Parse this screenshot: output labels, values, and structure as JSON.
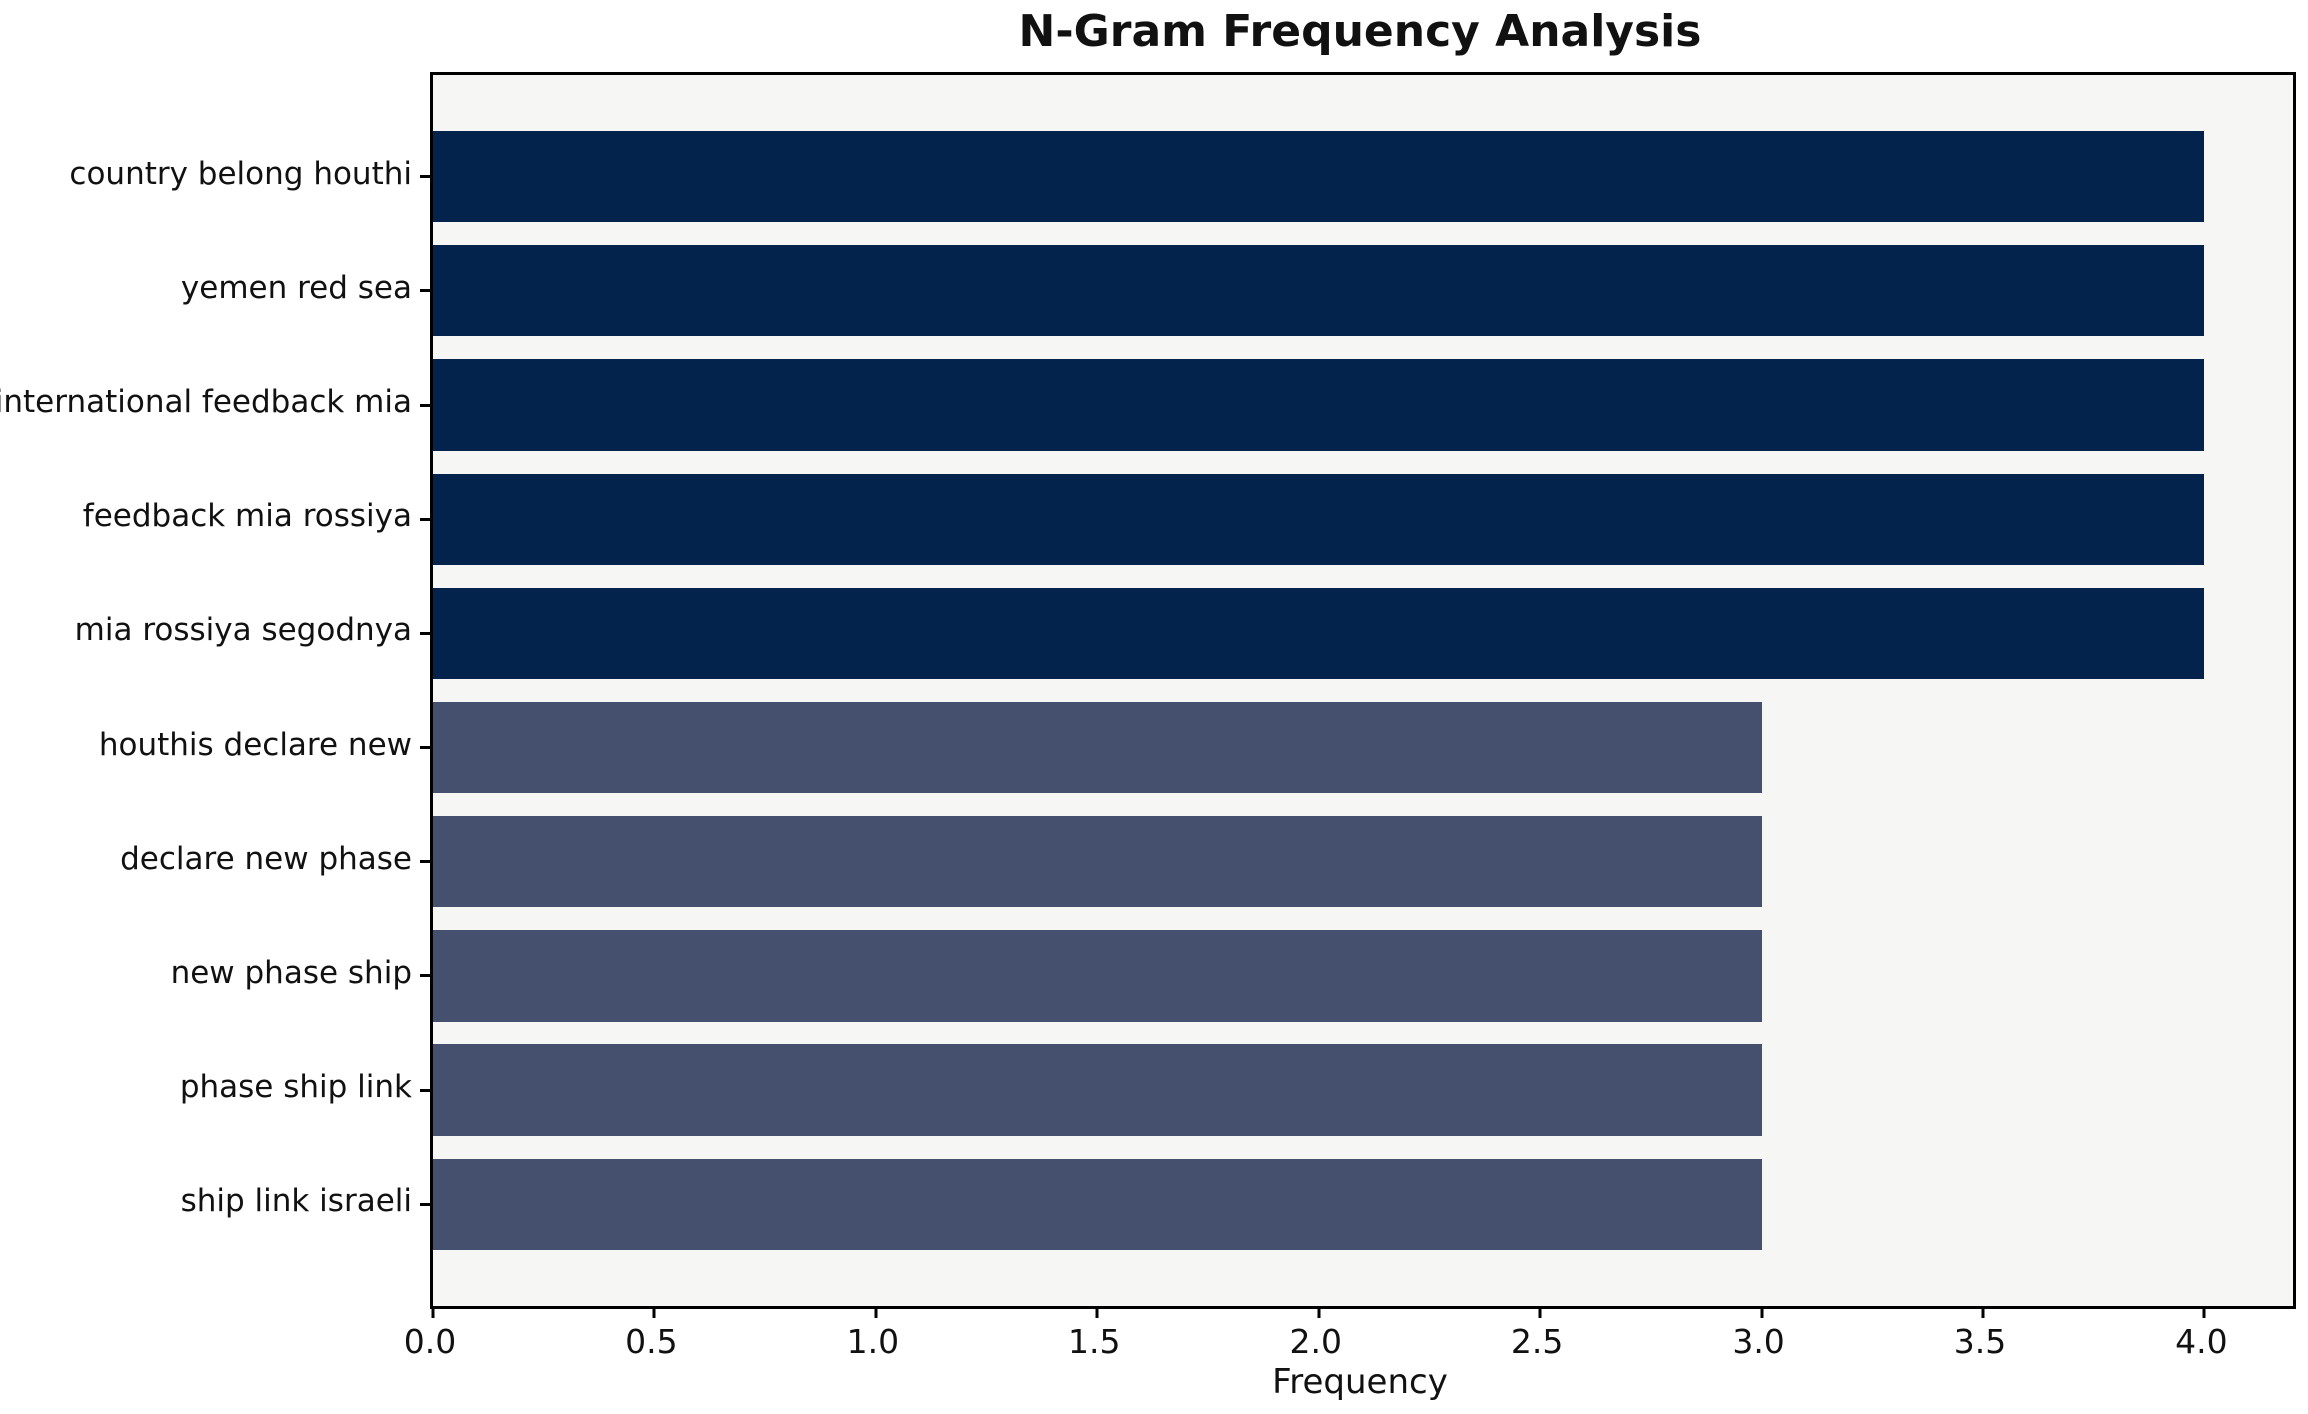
{
  "chart_data": {
    "type": "bar",
    "orientation": "horizontal",
    "title": "N-Gram Frequency Analysis",
    "xlabel": "Frequency",
    "ylabel": "",
    "categories": [
      "country belong houthi",
      "yemen red sea",
      "international feedback mia",
      "feedback mia rossiya",
      "mia rossiya segodnya",
      "houthis declare new",
      "declare new phase",
      "new phase ship",
      "phase ship link",
      "ship link israeli"
    ],
    "values": [
      4,
      4,
      4,
      4,
      4,
      3,
      3,
      3,
      3,
      3
    ],
    "bar_colors": [
      "#03234d",
      "#03234d",
      "#03234d",
      "#03234d",
      "#03234d",
      "#45506e",
      "#45506e",
      "#45506e",
      "#45506e",
      "#45506e"
    ],
    "xlim": [
      0,
      4.2
    ],
    "xticks": [
      "0.0",
      "0.5",
      "1.0",
      "1.5",
      "2.0",
      "2.5",
      "3.0",
      "3.5",
      "4.0"
    ],
    "xtick_values": [
      0,
      0.5,
      1,
      1.5,
      2,
      2.5,
      3,
      3.5,
      4
    ],
    "grid": false,
    "legend_position": "none",
    "plot_background": "#f6f6f4",
    "figure_background": "#ffffff",
    "spine_color": "#000000",
    "text_color": "#111111"
  }
}
